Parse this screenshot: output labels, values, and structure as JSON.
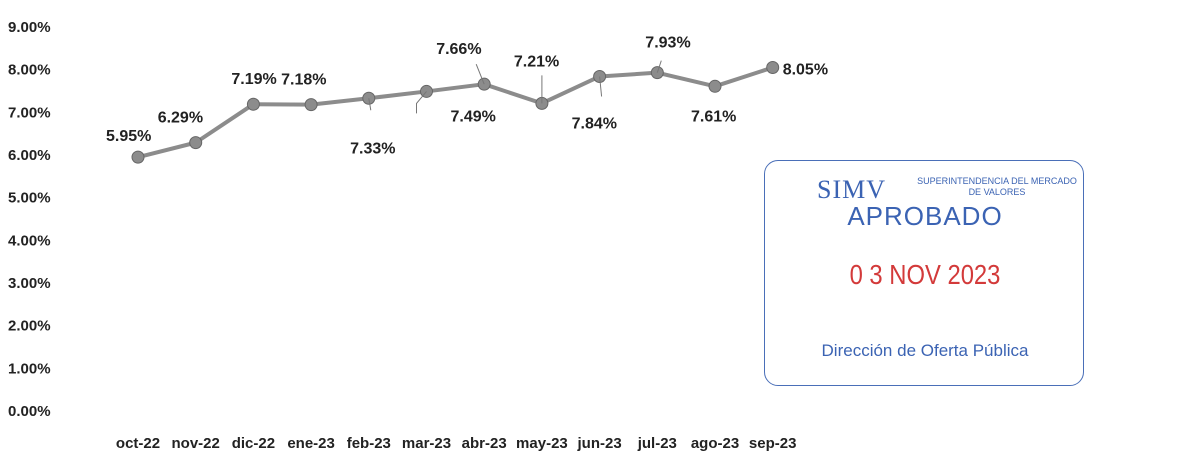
{
  "chart_data": {
    "type": "line",
    "categories": [
      "oct-22",
      "nov-22",
      "dic-22",
      "ene-23",
      "feb-23",
      "mar-23",
      "abr-23",
      "may-23",
      "jun-23",
      "jul-23",
      "ago-23",
      "sep-23"
    ],
    "series": [
      {
        "values": [
          5.95,
          6.29,
          7.19,
          7.18,
          7.33,
          7.49,
          7.66,
          7.21,
          7.84,
          7.93,
          7.61,
          8.05
        ]
      }
    ],
    "data_labels": [
      "5.95%",
      "6.29%",
      "7.19%",
      "7.18%",
      "7.33%",
      "7.49%",
      "7.66%",
      "7.21%",
      "7.84%",
      "7.93%",
      "7.61%",
      "8.05%"
    ],
    "y_ticks": [
      "0.00%",
      "1.00%",
      "2.00%",
      "3.00%",
      "4.00%",
      "5.00%",
      "6.00%",
      "7.00%",
      "8.00%",
      "9.00%"
    ],
    "ylim": [
      0,
      9
    ],
    "grid": false,
    "legend": "none",
    "line_color": "#8c8c8c",
    "marker_color": "#8c8c8c"
  },
  "stamp": {
    "logo": "SIMV",
    "org": "SUPERINTENDENCIA DEL MERCADO DE VALORES",
    "status": "APROBADO",
    "date": "0 3 NOV 2023",
    "department": "Dirección de Oferta Pública",
    "border_color": "#4a6fb8",
    "text_color": "#3b63b3",
    "date_color": "#d33a3a"
  }
}
